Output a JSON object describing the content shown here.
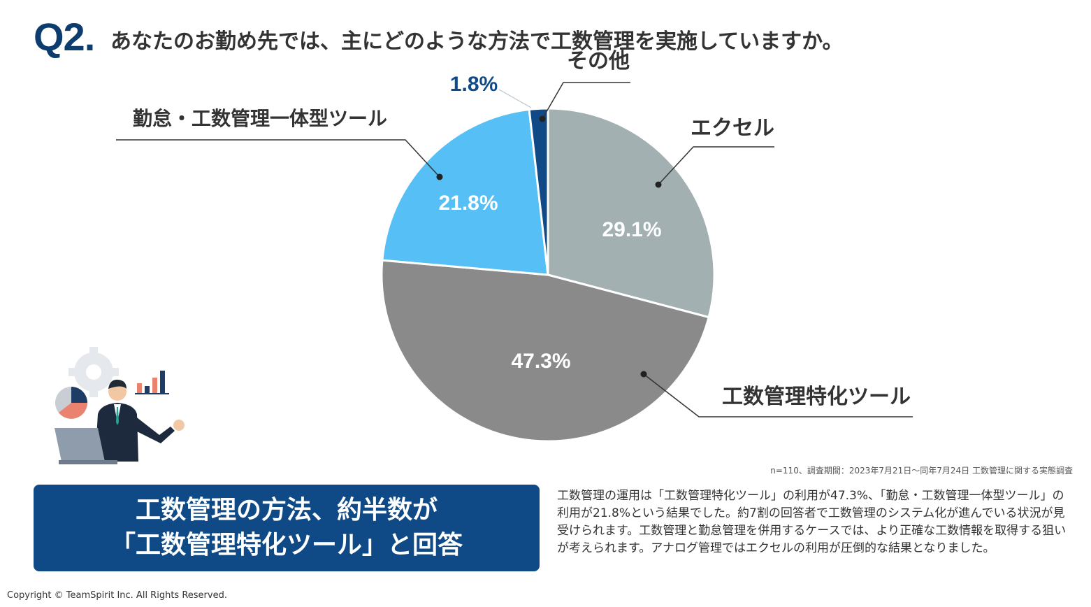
{
  "question": {
    "number": "Q2.",
    "text": "あなたのお勤め先では、主にどのような方法で工数管理を実施していますか。"
  },
  "chart_data": {
    "type": "pie",
    "title": "あなたのお勤め先では、主にどのような方法で工数管理を実施していますか。",
    "start_angle_deg": 0,
    "direction": "clockwise",
    "slices": [
      {
        "label": "エクセル",
        "value": 29.1,
        "value_label": "29.1%",
        "color": "#a2b0b1"
      },
      {
        "label": "工数管理特化ツール",
        "value": 47.3,
        "value_label": "47.3%",
        "color": "#8a8a8a"
      },
      {
        "label": "勤怠・工数管理一体型ツール",
        "value": 21.8,
        "value_label": "21.8%",
        "color": "#55bff6"
      },
      {
        "label": "その他",
        "value": 1.8,
        "value_label": "1.8%",
        "color": "#0f4a86"
      }
    ]
  },
  "note": "n=110、調査期間：2023年7月21日〜同年7月24日 工数管理に関する実態調査",
  "summary": {
    "line1": "工数管理の方法、約半数が",
    "line2": "「工数管理特化ツール」と回答"
  },
  "body_text": "工数管理の運用は「工数管理特化ツール」の利用が47.3%、「勤怠・工数管理一体型ツール」の利用が21.8%という結果でした。約7割の回答者で工数管理のシステム化が進んでいる状況が見受けられます。工数管理と勤怠管理を併用するケースでは、より正確な工数情報を取得する狙いが考えられます。アナログ管理ではエクセルの利用が圧倒的な結果となりました。",
  "copyright": "Copyright © TeamSpirit Inc. All Rights Reserved."
}
